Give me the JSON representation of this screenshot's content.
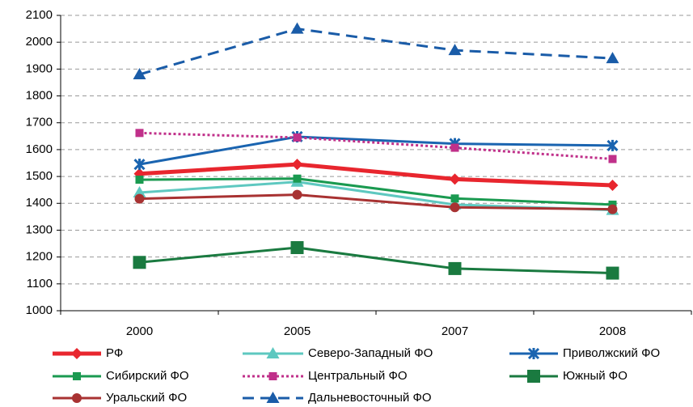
{
  "chart_data": {
    "type": "line",
    "categories": [
      "2000",
      "2005",
      "2007",
      "2008"
    ],
    "ylim": [
      1000,
      2100
    ],
    "yticks": [
      1000,
      1100,
      1200,
      1300,
      1400,
      1500,
      1600,
      1700,
      1800,
      1900,
      2000,
      2100
    ],
    "grid": true,
    "legend": "bottom",
    "series": [
      {
        "name": "РФ",
        "color": "#e8262e",
        "marker": "diamond",
        "line_style": "solid",
        "bold": true,
        "values": [
          1510,
          1545,
          1490,
          1467
        ]
      },
      {
        "name": "Северо-Западный ФО",
        "color": "#5ec8c0",
        "marker": "triangle",
        "line_style": "solid",
        "values": [
          1440,
          1480,
          1395,
          1375
        ]
      },
      {
        "name": "Приволжский ФО",
        "color": "#1a64b0",
        "marker": "asterisk",
        "line_style": "solid",
        "values": [
          1545,
          1648,
          1622,
          1615
        ]
      },
      {
        "name": "Сибирский ФО",
        "color": "#1a9a50",
        "marker": "square",
        "line_style": "solid",
        "values": [
          1488,
          1492,
          1418,
          1395
        ]
      },
      {
        "name": "Центральный ФО",
        "color": "#c0308a",
        "marker": "square",
        "line_style": "dotted",
        "values": [
          1662,
          1645,
          1607,
          1565
        ]
      },
      {
        "name": "Южный ФО",
        "color": "#1a7a40",
        "marker": "big-square",
        "line_style": "solid",
        "values": [
          1180,
          1235,
          1157,
          1140
        ]
      },
      {
        "name": "Уральский ФО",
        "color": "#a83232",
        "marker": "circle",
        "line_style": "solid",
        "values": [
          1417,
          1432,
          1385,
          1378
        ]
      },
      {
        "name": "Дальневосточный ФО",
        "color": "#1a5ca8",
        "marker": "triangle",
        "line_style": "dashed",
        "values": [
          1880,
          2050,
          1970,
          1940
        ]
      }
    ]
  }
}
